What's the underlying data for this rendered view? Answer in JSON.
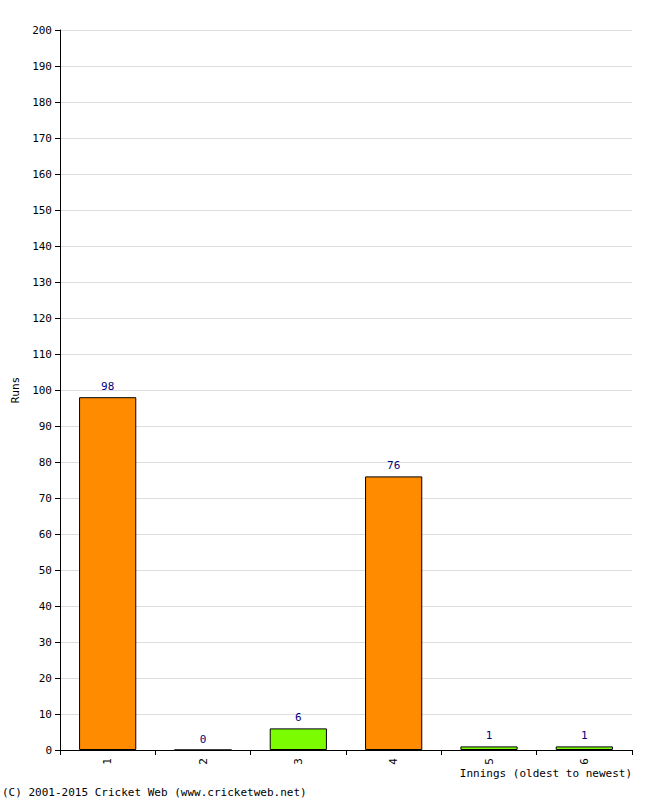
{
  "chart_data": {
    "type": "bar",
    "x_label": "Innings (oldest to newest)",
    "y_label": "Runs",
    "annotations": [
      "(C) 2001-2015 Cricket Web (www.cricketweb.net)"
    ],
    "categories": [
      "1",
      "2",
      "3",
      "4",
      "5",
      "6"
    ],
    "values": [
      98,
      0,
      6,
      76,
      1,
      1
    ],
    "colors": [
      "#ff8c00",
      "#ff8c00",
      "#7cfc00",
      "#ff8c00",
      "#7cfc00",
      "#7cfc00"
    ],
    "ylim": [
      0,
      200
    ],
    "yticks": [
      0,
      10,
      20,
      30,
      40,
      50,
      60,
      70,
      80,
      90,
      100,
      110,
      120,
      130,
      140,
      150,
      160,
      170,
      180,
      190,
      200
    ],
    "grid": true,
    "data_labels": true
  }
}
